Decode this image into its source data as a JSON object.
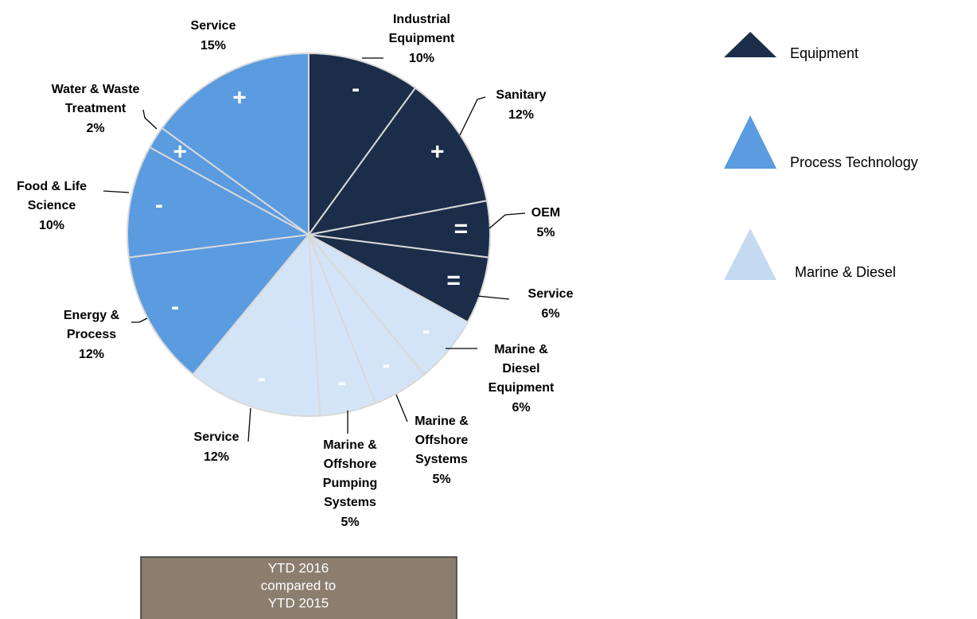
{
  "chart_data": {
    "type": "pie",
    "categories": [
      "Industrial\nEquipment",
      "Sanitary",
      "OEM",
      "Service",
      "Marine &\nDiesel\nEquipment",
      "Marine &\nOffshore\nSystems",
      "Marine &\nOffshore\nPumping\nSystems",
      "Service",
      "Energy &\nProcess",
      "Food & Life\nScience",
      "Water & Waste\nTreatment",
      "Service"
    ],
    "values": [
      10,
      12,
      5,
      6,
      6,
      5,
      5,
      12,
      12,
      10,
      2,
      15
    ],
    "value_labels": [
      "10%",
      "12%",
      "5%",
      "6%",
      "6%",
      "5%",
      "5%",
      "12%",
      "12%",
      "10%",
      "2%",
      "15%"
    ],
    "trends": [
      "-",
      "+",
      "=",
      "=",
      "-",
      "-",
      "-",
      "-",
      "-",
      "-",
      "+",
      "+"
    ],
    "colors": [
      "#1b2d49",
      "#1b2d49",
      "#1b2d49",
      "#1b2d49",
      "#d3e4f7",
      "#d3e4f7",
      "#d3e4f7",
      "#d3e4f7",
      "#5b9be0",
      "#5b9be0",
      "#5b9be0",
      "#5b9be0"
    ],
    "legend": [
      {
        "name": "Equipment",
        "color": "#1b2d49"
      },
      {
        "name": "Process Technology",
        "color": "#5b9be0"
      },
      {
        "name": "Marine & Diesel",
        "color": "#c5d9f1"
      }
    ],
    "annotation": [
      "YTD 2016",
      "compared to",
      "YTD 2015"
    ]
  }
}
